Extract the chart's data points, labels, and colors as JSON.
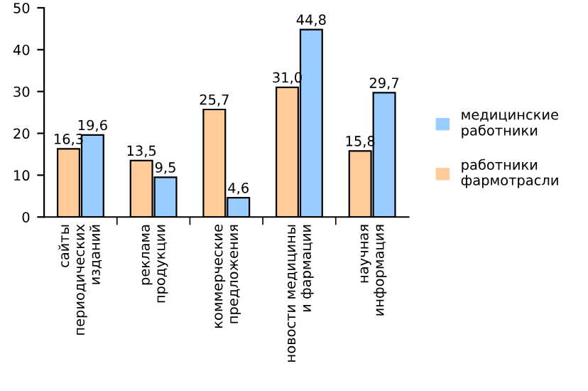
{
  "chart_data": {
    "type": "bar",
    "categories": [
      "сайты\nпериодических\nизданий",
      "реклама\nпродукции",
      "коммерческие\nпредложения",
      "новости медицины\nи фармации",
      "научная\nинформация"
    ],
    "series": [
      {
        "name": "работники\nфармотрасли",
        "color": "#ffcc99",
        "values": [
          16.3,
          13.5,
          25.7,
          31.0,
          15.8
        ],
        "value_labels": [
          "16,3",
          "13,5",
          "25,7",
          "31,0",
          "15,8"
        ]
      },
      {
        "name": "медицинские\nработники",
        "color": "#99ccff",
        "values": [
          19.6,
          9.5,
          4.6,
          44.8,
          29.7
        ],
        "value_labels": [
          "19,6",
          "9,5",
          "4,6",
          "44,8",
          "29,7"
        ]
      }
    ],
    "ylim": [
      0,
      50
    ],
    "yticks": [
      0,
      10,
      20,
      30,
      40,
      50
    ],
    "grid": false,
    "legend": "right"
  }
}
